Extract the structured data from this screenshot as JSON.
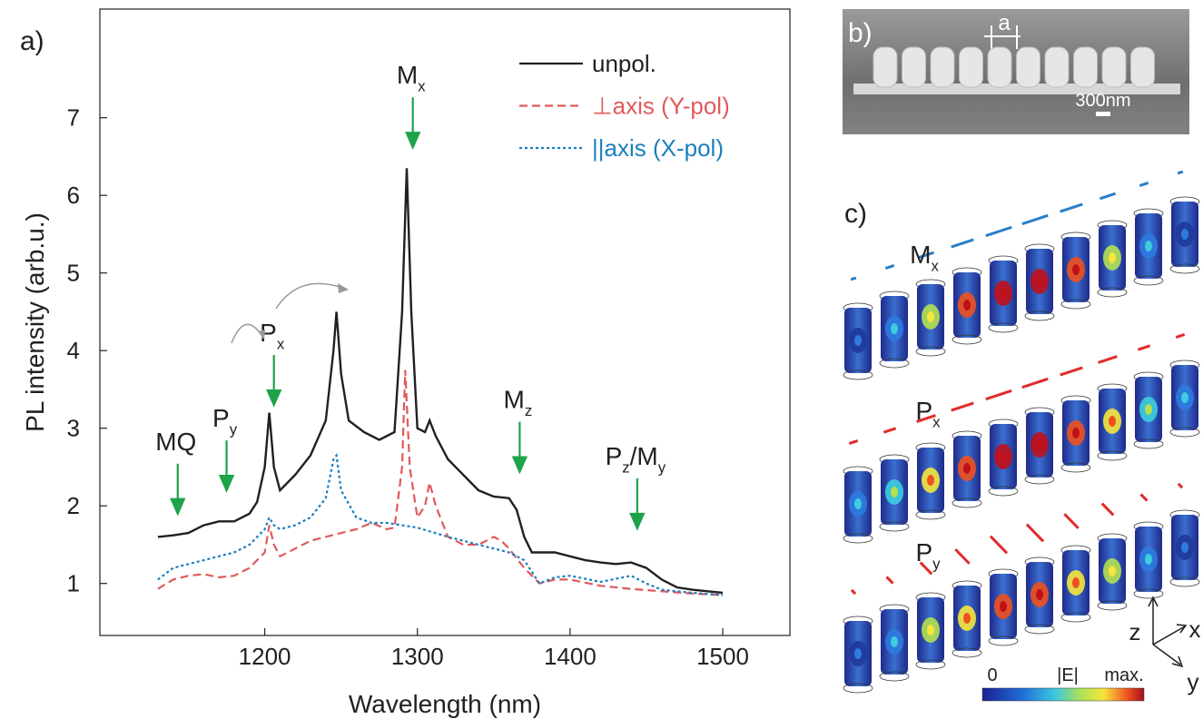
{
  "chart_data": {
    "type": "line",
    "panel_label": "a)",
    "xlabel": "Wavelength (nm)",
    "ylabel": "PL intensity  (arb.u.)",
    "xlim": [
      1092,
      1544
    ],
    "ylim": [
      0.33,
      8.4
    ],
    "xticks": [
      1200,
      1300,
      1400,
      1500
    ],
    "yticks": [
      1,
      2,
      3,
      4,
      5,
      6,
      7
    ],
    "legend": "top-right",
    "series": [
      {
        "name": "unpol.",
        "color": "#231f20",
        "style": "solid",
        "x": [
          1130,
          1140,
          1150,
          1160,
          1170,
          1180,
          1190,
          1195,
          1200,
          1203,
          1206,
          1210,
          1220,
          1230,
          1240,
          1245,
          1247,
          1250,
          1255,
          1265,
          1275,
          1285,
          1290,
          1293,
          1296,
          1300,
          1305,
          1308,
          1312,
          1320,
          1330,
          1340,
          1350,
          1360,
          1365,
          1370,
          1375,
          1380,
          1390,
          1400,
          1410,
          1420,
          1430,
          1440,
          1450,
          1460,
          1470,
          1480,
          1490,
          1500
        ],
        "values": [
          1.6,
          1.62,
          1.65,
          1.75,
          1.8,
          1.8,
          1.9,
          2.05,
          2.5,
          3.2,
          2.5,
          2.2,
          2.4,
          2.65,
          3.1,
          4.0,
          4.5,
          3.7,
          3.1,
          2.95,
          2.85,
          2.95,
          4.5,
          6.35,
          4.5,
          3.0,
          2.95,
          3.1,
          2.9,
          2.6,
          2.4,
          2.2,
          2.12,
          2.1,
          1.95,
          1.6,
          1.4,
          1.4,
          1.4,
          1.35,
          1.3,
          1.27,
          1.25,
          1.27,
          1.2,
          1.05,
          0.95,
          0.92,
          0.9,
          0.88
        ]
      },
      {
        "name": "axis (Y-pol)",
        "symbol": "⊥",
        "color": "#e05a5a",
        "style": "dashed",
        "x": [
          1130,
          1140,
          1150,
          1160,
          1170,
          1180,
          1190,
          1200,
          1203,
          1206,
          1210,
          1220,
          1230,
          1240,
          1250,
          1260,
          1270,
          1280,
          1285,
          1290,
          1292,
          1295,
          1300,
          1305,
          1308,
          1312,
          1320,
          1330,
          1340,
          1350,
          1355,
          1360,
          1370,
          1380,
          1390,
          1400,
          1420,
          1440,
          1460,
          1480,
          1500
        ],
        "values": [
          0.93,
          1.05,
          1.1,
          1.12,
          1.08,
          1.1,
          1.2,
          1.4,
          1.75,
          1.5,
          1.35,
          1.45,
          1.55,
          1.6,
          1.65,
          1.7,
          1.78,
          1.7,
          1.72,
          2.5,
          3.75,
          2.5,
          1.85,
          2.0,
          2.3,
          2.0,
          1.6,
          1.5,
          1.5,
          1.6,
          1.55,
          1.45,
          1.2,
          1.0,
          1.05,
          1.05,
          0.97,
          0.93,
          0.9,
          0.87,
          0.85
        ]
      },
      {
        "name": "axis (X-pol)",
        "symbol": "||",
        "color": "#1a7fbf",
        "style": "dotted",
        "x": [
          1130,
          1140,
          1150,
          1160,
          1170,
          1180,
          1190,
          1200,
          1203,
          1206,
          1210,
          1220,
          1230,
          1240,
          1245,
          1247,
          1250,
          1260,
          1270,
          1280,
          1290,
          1300,
          1320,
          1340,
          1360,
          1370,
          1380,
          1390,
          1400,
          1420,
          1440,
          1450,
          1460,
          1480,
          1500
        ],
        "values": [
          1.05,
          1.2,
          1.25,
          1.3,
          1.35,
          1.4,
          1.5,
          1.7,
          1.85,
          1.75,
          1.7,
          1.75,
          1.85,
          2.1,
          2.6,
          2.65,
          2.2,
          1.85,
          1.78,
          1.78,
          1.75,
          1.72,
          1.6,
          1.5,
          1.4,
          1.3,
          1.0,
          1.08,
          1.1,
          1.02,
          1.1,
          1.0,
          0.92,
          0.88,
          0.85
        ]
      }
    ],
    "annotations": [
      {
        "parts": [
          "MQ"
        ],
        "x": 1143,
        "y": 1.9
      },
      {
        "parts": [
          "P",
          "y"
        ],
        "x": 1175,
        "y": 2.2
      },
      {
        "parts": [
          "P",
          "x"
        ],
        "x": 1206,
        "y": 3.3
      },
      {
        "parts": [
          "M",
          "x"
        ],
        "x": 1297,
        "y": 6.62
      },
      {
        "parts": [
          "M",
          "z"
        ],
        "x": 1367,
        "y": 2.44
      },
      {
        "parts": [
          "P",
          "z",
          "/M",
          "y"
        ],
        "x": 1444,
        "y": 1.71
      }
    ]
  },
  "panel_b": {
    "label": "b)",
    "period": "a",
    "scale_bar": "300nm"
  },
  "panel_c": {
    "label": "c)",
    "modes": [
      [
        "M",
        "x"
      ],
      [
        "P",
        "x"
      ],
      [
        "P",
        "y"
      ]
    ],
    "axes": [
      "z",
      "x",
      "y"
    ],
    "colorbar": [
      "0",
      "|E|",
      "max."
    ]
  }
}
